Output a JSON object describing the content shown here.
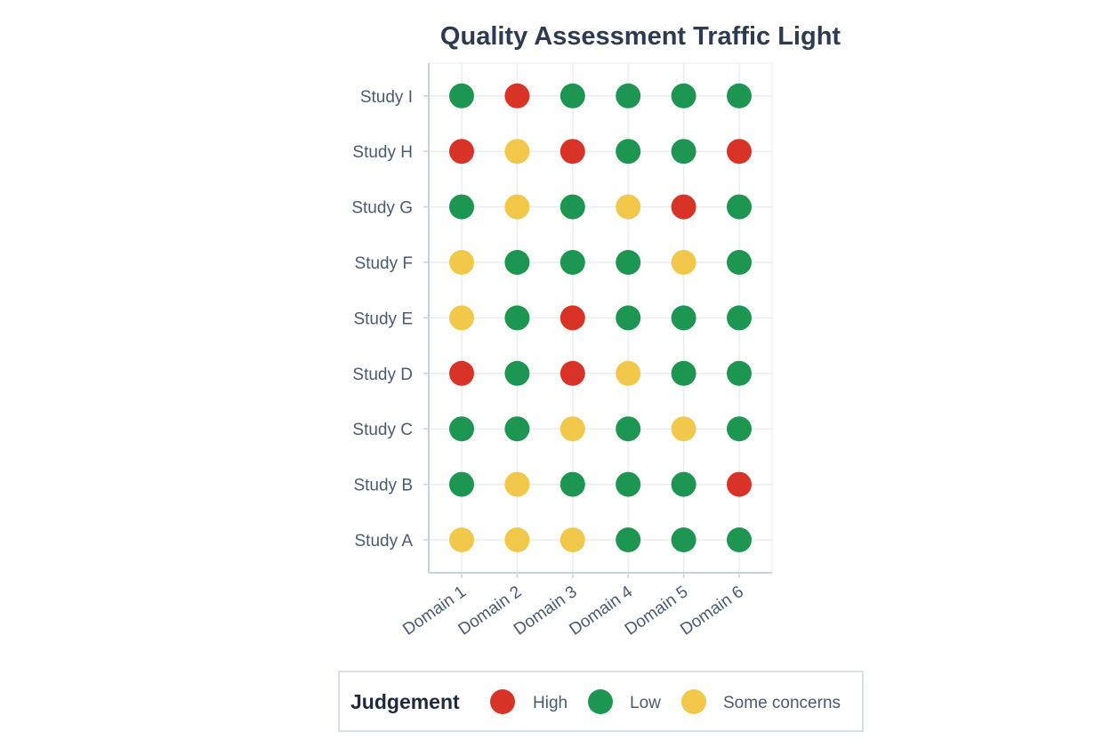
{
  "chart_data": {
    "type": "scatter",
    "title": "Quality Assessment Traffic Light",
    "xlabel": "",
    "ylabel": "",
    "x_categories": [
      "Domain 1",
      "Domain 2",
      "Domain 3",
      "Domain 4",
      "Domain 5",
      "Domain 6"
    ],
    "y_categories": [
      "Study A",
      "Study B",
      "Study C",
      "Study D",
      "Study E",
      "Study F",
      "Study G",
      "Study H",
      "Study I"
    ],
    "grid": true,
    "legend": {
      "title": "Judgement",
      "placement": "bottom",
      "entries": [
        {
          "label": "High",
          "color": "#d93327"
        },
        {
          "label": "Low",
          "color": "#1c9650"
        },
        {
          "label": "Some concerns",
          "color": "#f2c84b"
        }
      ]
    },
    "rows": [
      {
        "study": "Study A",
        "judgements": [
          "Some concerns",
          "Some concerns",
          "Some concerns",
          "Low",
          "Low",
          "Low"
        ]
      },
      {
        "study": "Study B",
        "judgements": [
          "Low",
          "Some concerns",
          "Low",
          "Low",
          "Low",
          "High"
        ]
      },
      {
        "study": "Study C",
        "judgements": [
          "Low",
          "Low",
          "Some concerns",
          "Low",
          "Some concerns",
          "Low"
        ]
      },
      {
        "study": "Study D",
        "judgements": [
          "High",
          "Low",
          "High",
          "Some concerns",
          "Low",
          "Low"
        ]
      },
      {
        "study": "Study E",
        "judgements": [
          "Some concerns",
          "Low",
          "High",
          "Low",
          "Low",
          "Low"
        ]
      },
      {
        "study": "Study F",
        "judgements": [
          "Some concerns",
          "Low",
          "Low",
          "Low",
          "Some concerns",
          "Low"
        ]
      },
      {
        "study": "Study G",
        "judgements": [
          "Low",
          "Some concerns",
          "Low",
          "Some concerns",
          "High",
          "Low"
        ]
      },
      {
        "study": "Study H",
        "judgements": [
          "High",
          "Some concerns",
          "High",
          "Low",
          "Low",
          "High"
        ]
      },
      {
        "study": "Study I",
        "judgements": [
          "Low",
          "High",
          "Low",
          "Low",
          "Low",
          "Low"
        ]
      }
    ]
  }
}
